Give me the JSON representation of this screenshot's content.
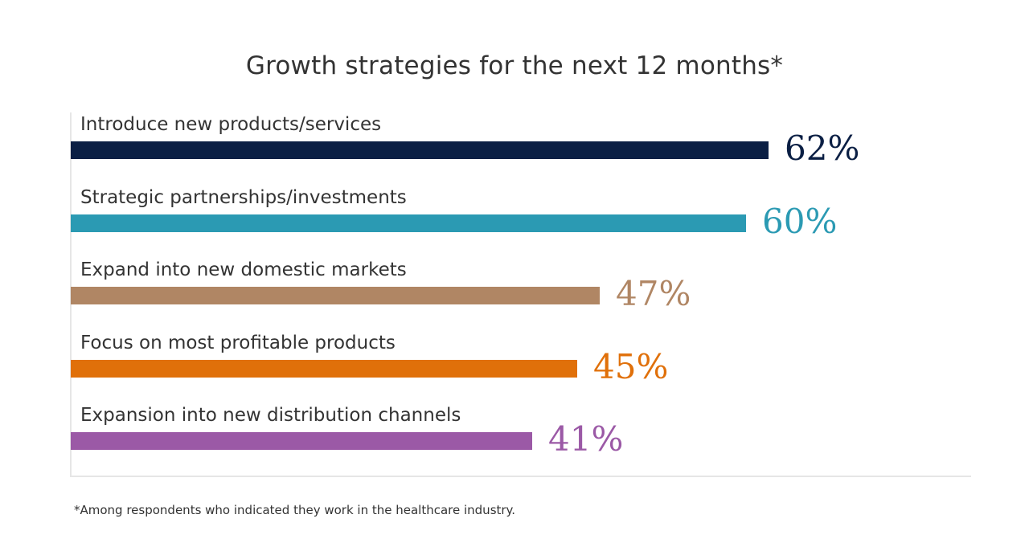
{
  "chart_data": {
    "type": "bar",
    "orientation": "horizontal",
    "title": "Growth strategies for the next 12 months*",
    "categories": [
      "Introduce new products/services",
      "Strategic partnerships/investments",
      "Expand into new domestic markets",
      "Focus on most profitable products",
      "Expansion into new distribution channels"
    ],
    "values": [
      62,
      60,
      47,
      45,
      41
    ],
    "value_labels": [
      "62%",
      "60%",
      "47%",
      "45%",
      "41%"
    ],
    "colors": [
      "#0b1f44",
      "#2b9ab3",
      "#b08664",
      "#e0700a",
      "#9b59a6"
    ],
    "unit": "%",
    "grid": false,
    "legend": "none"
  },
  "footnote": "*Among respondents who indicated they work in the healthcare industry."
}
